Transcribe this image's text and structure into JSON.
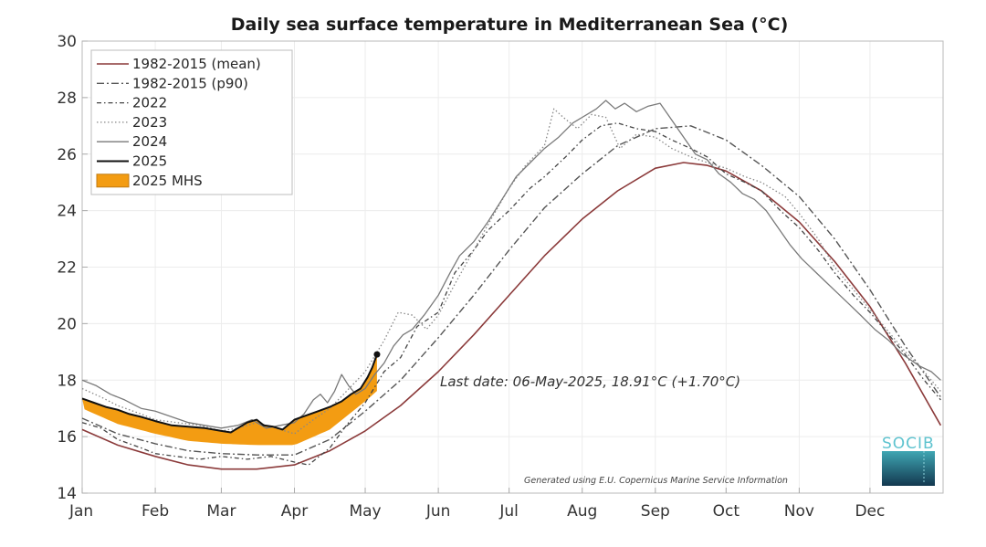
{
  "chart_data": {
    "type": "line",
    "title": "Daily sea surface temperature in Mediterranean Sea (°C)",
    "xlabel": "",
    "ylabel": "",
    "x_unit": "day of year",
    "xlim": [
      0,
      365
    ],
    "ylim": [
      14,
      30
    ],
    "grid": true,
    "legend_position": "top-left",
    "y_ticks": [
      14,
      16,
      18,
      20,
      22,
      24,
      26,
      28,
      30
    ],
    "x_ticks": [
      {
        "label": "Jan",
        "day": 0
      },
      {
        "label": "Feb",
        "day": 31
      },
      {
        "label": "Mar",
        "day": 59
      },
      {
        "label": "Apr",
        "day": 90
      },
      {
        "label": "May",
        "day": 120
      },
      {
        "label": "Jun",
        "day": 151
      },
      {
        "label": "Jul",
        "day": 181
      },
      {
        "label": "Aug",
        "day": 212
      },
      {
        "label": "Sep",
        "day": 243
      },
      {
        "label": "Oct",
        "day": 273
      },
      {
        "label": "Nov",
        "day": 304
      },
      {
        "label": "Dec",
        "day": 334
      }
    ],
    "series": [
      {
        "name": "1982-2015 (mean)",
        "style": "solid",
        "color": "#8b3a3a",
        "width": 1.6,
        "points": [
          [
            0,
            16.25
          ],
          [
            15,
            15.7
          ],
          [
            31,
            15.3
          ],
          [
            45,
            15.0
          ],
          [
            59,
            14.85
          ],
          [
            74,
            14.85
          ],
          [
            90,
            15.0
          ],
          [
            105,
            15.5
          ],
          [
            120,
            16.2
          ],
          [
            135,
            17.1
          ],
          [
            151,
            18.3
          ],
          [
            166,
            19.6
          ],
          [
            181,
            21.0
          ],
          [
            196,
            22.4
          ],
          [
            212,
            23.7
          ],
          [
            227,
            24.7
          ],
          [
            243,
            25.5
          ],
          [
            255,
            25.7
          ],
          [
            265,
            25.6
          ],
          [
            273,
            25.4
          ],
          [
            288,
            24.7
          ],
          [
            304,
            23.6
          ],
          [
            319,
            22.2
          ],
          [
            334,
            20.6
          ],
          [
            349,
            18.6
          ],
          [
            364,
            16.4
          ]
        ]
      },
      {
        "name": "1982-2015 (p90)",
        "style": "dashdot",
        "color": "#555555",
        "width": 1.4,
        "points": [
          [
            0,
            16.65
          ],
          [
            15,
            16.1
          ],
          [
            31,
            15.75
          ],
          [
            45,
            15.5
          ],
          [
            59,
            15.4
          ],
          [
            74,
            15.35
          ],
          [
            90,
            15.35
          ],
          [
            105,
            15.9
          ],
          [
            120,
            16.9
          ],
          [
            135,
            18.0
          ],
          [
            151,
            19.5
          ],
          [
            166,
            21.0
          ],
          [
            181,
            22.6
          ],
          [
            196,
            24.1
          ],
          [
            212,
            25.3
          ],
          [
            227,
            26.3
          ],
          [
            243,
            26.9
          ],
          [
            258,
            27.0
          ],
          [
            273,
            26.5
          ],
          [
            288,
            25.6
          ],
          [
            304,
            24.5
          ],
          [
            319,
            23.0
          ],
          [
            334,
            21.2
          ],
          [
            349,
            19.2
          ],
          [
            364,
            17.4
          ]
        ]
      },
      {
        "name": "2022",
        "style": "dashdot2",
        "color": "#444444",
        "width": 1.3,
        "points": [
          [
            0,
            16.5
          ],
          [
            8,
            16.3
          ],
          [
            15,
            15.9
          ],
          [
            25,
            15.6
          ],
          [
            31,
            15.4
          ],
          [
            40,
            15.3
          ],
          [
            50,
            15.2
          ],
          [
            59,
            15.3
          ],
          [
            70,
            15.2
          ],
          [
            80,
            15.3
          ],
          [
            90,
            15.1
          ],
          [
            96,
            15.0
          ],
          [
            105,
            15.6
          ],
          [
            112,
            16.4
          ],
          [
            120,
            17.2
          ],
          [
            128,
            18.3
          ],
          [
            135,
            18.8
          ],
          [
            142,
            19.9
          ],
          [
            151,
            20.4
          ],
          [
            158,
            21.8
          ],
          [
            166,
            22.6
          ],
          [
            172,
            23.3
          ],
          [
            181,
            24.0
          ],
          [
            190,
            24.8
          ],
          [
            196,
            25.2
          ],
          [
            205,
            25.9
          ],
          [
            212,
            26.5
          ],
          [
            220,
            27.0
          ],
          [
            227,
            27.1
          ],
          [
            235,
            26.9
          ],
          [
            243,
            26.8
          ],
          [
            250,
            26.5
          ],
          [
            258,
            26.2
          ],
          [
            265,
            25.9
          ],
          [
            273,
            25.3
          ],
          [
            281,
            25.0
          ],
          [
            288,
            24.7
          ],
          [
            296,
            24.0
          ],
          [
            304,
            23.4
          ],
          [
            312,
            22.6
          ],
          [
            319,
            21.8
          ],
          [
            327,
            21.0
          ],
          [
            334,
            20.4
          ],
          [
            342,
            19.6
          ],
          [
            349,
            18.9
          ],
          [
            357,
            18.0
          ],
          [
            364,
            17.3
          ]
        ]
      },
      {
        "name": "2023",
        "style": "dotted",
        "color": "#888888",
        "width": 1.3,
        "points": [
          [
            0,
            17.7
          ],
          [
            8,
            17.4
          ],
          [
            15,
            17.1
          ],
          [
            25,
            16.8
          ],
          [
            31,
            16.6
          ],
          [
            40,
            16.5
          ],
          [
            50,
            16.4
          ],
          [
            59,
            16.2
          ],
          [
            66,
            16.3
          ],
          [
            74,
            16.5
          ],
          [
            82,
            16.3
          ],
          [
            90,
            16.1
          ],
          [
            98,
            16.6
          ],
          [
            105,
            17.0
          ],
          [
            112,
            17.6
          ],
          [
            120,
            18.3
          ],
          [
            128,
            19.4
          ],
          [
            134,
            20.4
          ],
          [
            140,
            20.3
          ],
          [
            146,
            19.8
          ],
          [
            151,
            20.3
          ],
          [
            158,
            21.4
          ],
          [
            166,
            22.6
          ],
          [
            172,
            23.5
          ],
          [
            181,
            24.8
          ],
          [
            188,
            25.6
          ],
          [
            196,
            26.3
          ],
          [
            200,
            27.6
          ],
          [
            204,
            27.3
          ],
          [
            210,
            26.9
          ],
          [
            216,
            27.4
          ],
          [
            222,
            27.3
          ],
          [
            228,
            26.2
          ],
          [
            235,
            26.7
          ],
          [
            243,
            26.6
          ],
          [
            250,
            26.2
          ],
          [
            258,
            25.9
          ],
          [
            265,
            25.7
          ],
          [
            273,
            25.5
          ],
          [
            281,
            25.2
          ],
          [
            288,
            25.0
          ],
          [
            292,
            24.8
          ],
          [
            298,
            24.5
          ],
          [
            304,
            23.9
          ],
          [
            312,
            23.0
          ],
          [
            319,
            22.0
          ],
          [
            327,
            21.2
          ],
          [
            334,
            20.5
          ],
          [
            342,
            19.7
          ],
          [
            349,
            19.0
          ],
          [
            357,
            18.3
          ],
          [
            364,
            17.6
          ]
        ]
      },
      {
        "name": "2024",
        "style": "solid",
        "color": "#7a7a7a",
        "width": 1.3,
        "points": [
          [
            0,
            18.0
          ],
          [
            6,
            17.8
          ],
          [
            12,
            17.5
          ],
          [
            18,
            17.3
          ],
          [
            25,
            17.0
          ],
          [
            31,
            16.9
          ],
          [
            38,
            16.7
          ],
          [
            45,
            16.5
          ],
          [
            52,
            16.4
          ],
          [
            59,
            16.3
          ],
          [
            66,
            16.4
          ],
          [
            72,
            16.6
          ],
          [
            78,
            16.3
          ],
          [
            84,
            16.4
          ],
          [
            90,
            16.5
          ],
          [
            94,
            16.8
          ],
          [
            98,
            17.3
          ],
          [
            101,
            17.5
          ],
          [
            104,
            17.2
          ],
          [
            107,
            17.6
          ],
          [
            110,
            18.2
          ],
          [
            113,
            17.8
          ],
          [
            116,
            17.5
          ],
          [
            120,
            17.7
          ],
          [
            124,
            18.2
          ],
          [
            128,
            18.6
          ],
          [
            132,
            19.2
          ],
          [
            136,
            19.6
          ],
          [
            140,
            19.8
          ],
          [
            145,
            20.3
          ],
          [
            151,
            21.0
          ],
          [
            156,
            21.8
          ],
          [
            160,
            22.4
          ],
          [
            166,
            22.9
          ],
          [
            172,
            23.6
          ],
          [
            178,
            24.4
          ],
          [
            184,
            25.2
          ],
          [
            190,
            25.7
          ],
          [
            196,
            26.2
          ],
          [
            202,
            26.6
          ],
          [
            208,
            27.1
          ],
          [
            212,
            27.3
          ],
          [
            218,
            27.6
          ],
          [
            222,
            27.9
          ],
          [
            226,
            27.6
          ],
          [
            230,
            27.8
          ],
          [
            235,
            27.5
          ],
          [
            240,
            27.7
          ],
          [
            245,
            27.8
          ],
          [
            250,
            27.2
          ],
          [
            255,
            26.6
          ],
          [
            260,
            26.0
          ],
          [
            265,
            25.8
          ],
          [
            270,
            25.3
          ],
          [
            275,
            25.0
          ],
          [
            280,
            24.6
          ],
          [
            285,
            24.4
          ],
          [
            290,
            24.0
          ],
          [
            295,
            23.4
          ],
          [
            300,
            22.8
          ],
          [
            305,
            22.3
          ],
          [
            310,
            21.9
          ],
          [
            315,
            21.5
          ],
          [
            320,
            21.1
          ],
          [
            325,
            20.7
          ],
          [
            330,
            20.3
          ],
          [
            336,
            19.8
          ],
          [
            342,
            19.4
          ],
          [
            348,
            18.9
          ],
          [
            355,
            18.5
          ],
          [
            360,
            18.3
          ],
          [
            364,
            18.0
          ]
        ]
      },
      {
        "name": "2025",
        "style": "solid",
        "color": "#111111",
        "width": 2.0,
        "points": [
          [
            0,
            17.35
          ],
          [
            5,
            17.2
          ],
          [
            10,
            17.05
          ],
          [
            15,
            16.95
          ],
          [
            20,
            16.8
          ],
          [
            25,
            16.7
          ],
          [
            31,
            16.55
          ],
          [
            38,
            16.4
          ],
          [
            45,
            16.35
          ],
          [
            52,
            16.3
          ],
          [
            59,
            16.2
          ],
          [
            63,
            16.15
          ],
          [
            66,
            16.3
          ],
          [
            70,
            16.5
          ],
          [
            74,
            16.6
          ],
          [
            77,
            16.4
          ],
          [
            81,
            16.35
          ],
          [
            85,
            16.25
          ],
          [
            90,
            16.6
          ],
          [
            95,
            16.75
          ],
          [
            100,
            16.9
          ],
          [
            105,
            17.05
          ],
          [
            110,
            17.25
          ],
          [
            114,
            17.5
          ],
          [
            118,
            17.7
          ],
          [
            121,
            18.1
          ],
          [
            123,
            18.45
          ],
          [
            125,
            18.91
          ]
        ]
      }
    ],
    "mhs_2025": {
      "name": "2025 MHS",
      "color": "#f39c12",
      "from_day": 0,
      "to_day": 125
    },
    "last_point": {
      "day": 125,
      "value": 18.91
    },
    "annotations": [
      {
        "text": "Last date: 06-May-2025, 18.91°C (+1.70°C)"
      },
      {
        "text": "Generated using E.U. Copernicus Marine Service Information"
      }
    ],
    "logo": "SOCIB"
  }
}
